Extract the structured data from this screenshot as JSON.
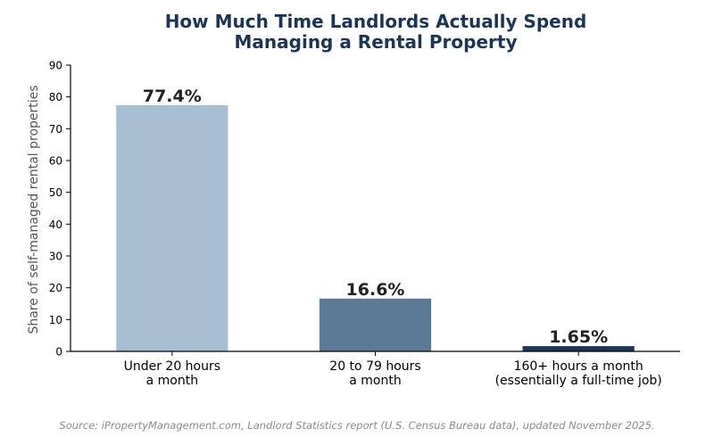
{
  "chart_data": {
    "type": "bar",
    "title_lines": [
      "How Much Time Landlords Actually Spend",
      "Managing a Rental Property"
    ],
    "categories": [
      [
        "Under 20 hours",
        "a month"
      ],
      [
        "20 to 79 hours",
        "a month"
      ],
      [
        "160+ hours a month",
        "(essentially a full-time job)"
      ]
    ],
    "values": [
      77.4,
      16.6,
      1.65
    ],
    "value_labels": [
      "77.4%",
      "16.6%",
      "1.65%"
    ],
    "bar_colors": [
      "#a7bdd1",
      "#5a7a96",
      "#1c3557"
    ],
    "xlabel": "",
    "ylabel": "Share of self-managed rental properties",
    "ylim": [
      0,
      90
    ],
    "yticks": [
      0,
      10,
      20,
      30,
      40,
      50,
      60,
      70,
      80,
      90
    ],
    "grid": false,
    "legend": "none"
  },
  "colors": {
    "title": "#1c3557",
    "axis": "#000000",
    "ylabel": "#555555",
    "data_label": "#222222",
    "source": "#8a8a8a"
  },
  "source_note": "Source: iPropertyManagement.com, Landlord Statistics report (U.S. Census Bureau data), updated November 2025."
}
